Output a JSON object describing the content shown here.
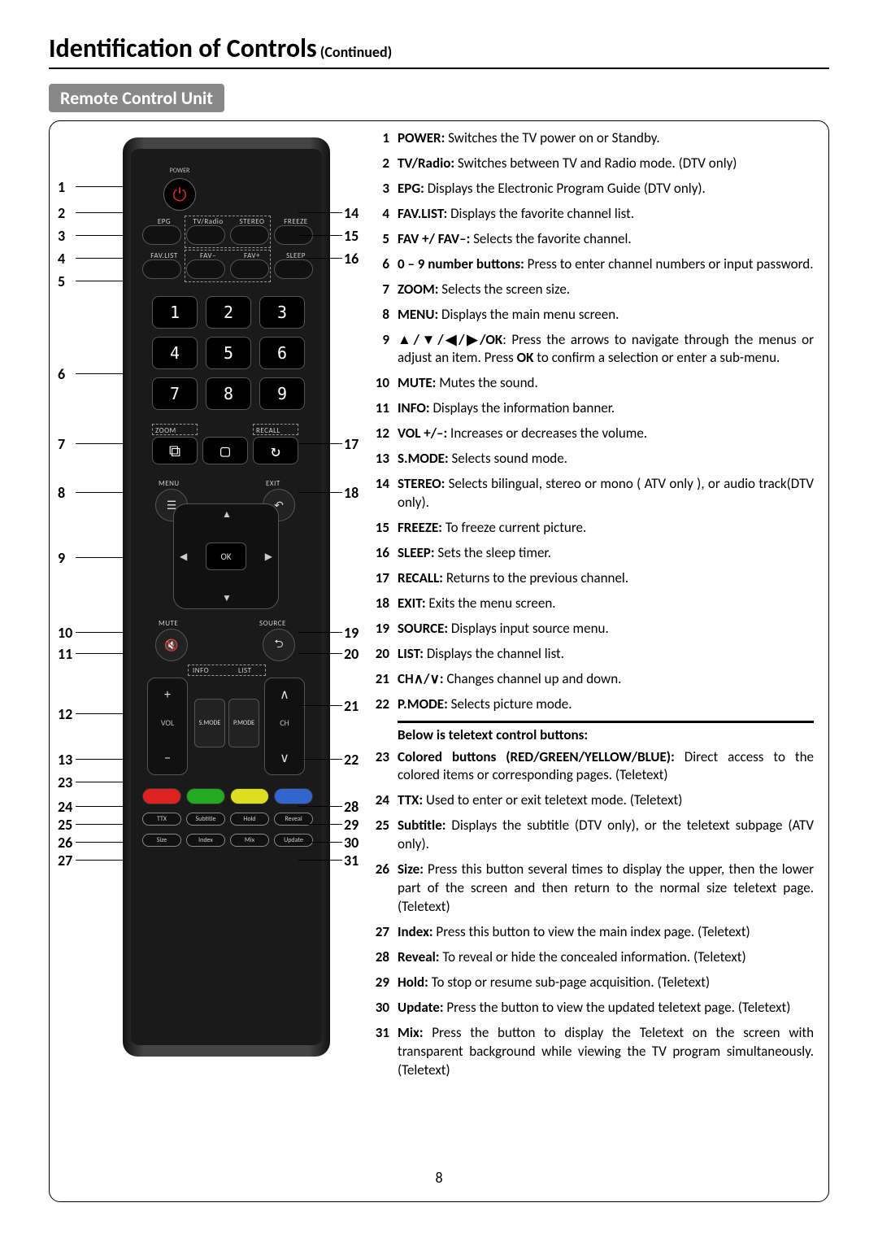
{
  "title_main": "Identification of Controls",
  "title_cont": " (Continued)",
  "section": "Remote Control Unit",
  "page_number": "8",
  "remote": {
    "power_label": "POWER",
    "row2_labels": [
      "EPG",
      "TV/Radio",
      "STEREO",
      "FREEZE"
    ],
    "row3_labels": [
      "FAV.LIST",
      "FAV–",
      "FAV+",
      "SLEEP"
    ],
    "digits": [
      "1",
      "2",
      "3",
      "4",
      "5",
      "6",
      "7",
      "8",
      "9"
    ],
    "zoom_label": "ZOOM",
    "recall_label": "RECALL",
    "menu_label": "MENU",
    "exit_label": "EXIT",
    "ok_label": "OK",
    "mute_label": "MUTE",
    "source_label": "SOURCE",
    "info_label": "INFO",
    "list_label": "LIST",
    "vol_label": "VOL",
    "ch_label": "CH",
    "smode_label": "S.MODE",
    "pmode_label": "P.MODE",
    "color_btns": [
      "#d22",
      "#2a2",
      "#dd2",
      "#36c"
    ],
    "txt_row1": [
      "TTX",
      "Subtitle",
      "Hold",
      "Reveal"
    ],
    "txt_row2": [
      "Size",
      "Index",
      "Mix",
      "Update"
    ]
  },
  "callouts_left": {
    "1": 60,
    "2": 92,
    "3": 120,
    "4": 148,
    "5": 176,
    "6": 290,
    "7": 376,
    "8": 436,
    "9": 516,
    "10": 608,
    "11": 634,
    "12": 708,
    "13": 764,
    "23": 792,
    "24": 822,
    "25": 844,
    "26": 866,
    "27": 888
  },
  "callouts_right": {
    "14": 92,
    "15": 120,
    "16": 148,
    "17": 376,
    "18": 436,
    "19": 608,
    "20": 634,
    "21": 698,
    "22": 764,
    "28": 822,
    "29": 844,
    "30": 866,
    "31": 888
  },
  "descriptions": [
    {
      "n": "1",
      "label": "POWER:",
      "text": " Switches the TV power on or Standby."
    },
    {
      "n": "2",
      "label": "TV/Radio:",
      "text": " Switches between TV and Radio mode. (DTV only)"
    },
    {
      "n": "3",
      "label": "EPG:",
      "text": " Displays the Electronic Program Guide (DTV only)."
    },
    {
      "n": "4",
      "label": "FAV.LIST:",
      "text": " Displays the favorite channel list."
    },
    {
      "n": "5",
      "label": "FAV +/ FAV–:",
      "text": " Selects the favorite channel."
    },
    {
      "n": "6",
      "label": "0 – 9 number buttons:",
      "text": " Press to enter channel numbers or input password."
    },
    {
      "n": "7",
      "label": "ZOOM:",
      "text": " Selects the screen size."
    },
    {
      "n": "8",
      "label": "MENU:",
      "text": " Displays the main menu screen."
    },
    {
      "n": "9",
      "label": "▲/▼/◀/▶/OK",
      "text": ": Press the arrows to navigate through the menus or adjust an item. Press OK to confirm a selection or enter a sub-menu.",
      "bold_ok": true
    },
    {
      "n": "10",
      "label": "MUTE:",
      "text": " Mutes the sound."
    },
    {
      "n": "11",
      "label": "INFO:",
      "text": " Displays the information banner."
    },
    {
      "n": "12",
      "label": "VOL +/–:",
      "text": " Increases or decreases the volume."
    },
    {
      "n": "13",
      "label": "S.MODE:",
      "text": " Selects sound mode."
    },
    {
      "n": "14",
      "label": "STEREO:",
      "text": " Selects bilingual, stereo or mono ( ATV only ), or audio track(DTV only)."
    },
    {
      "n": "15",
      "label": "FREEZE:",
      "text": " To freeze current picture."
    },
    {
      "n": "16",
      "label": "SLEEP:",
      "text": " Sets the sleep timer."
    },
    {
      "n": "17",
      "label": "RECALL:",
      "text": " Returns to the previous channel."
    },
    {
      "n": "18",
      "label": "EXIT:",
      "text": " Exits the menu screen."
    },
    {
      "n": "19",
      "label": "SOURCE:",
      "text": " Displays input source menu."
    },
    {
      "n": "20",
      "label": "LIST:",
      "text": " Displays the channel list."
    },
    {
      "n": "21",
      "label": "CH∧/∨:",
      "text": " Changes channel up and down."
    },
    {
      "n": "22",
      "label": "P.MODE:",
      "text": " Selects picture mode."
    }
  ],
  "teletext_header": "Below is teletext control buttons:",
  "teletext_items": [
    {
      "n": "23",
      "label": "Colored buttons (RED/GREEN/YELLOW/BLUE):",
      "text": " Direct access to the colored items or corresponding pages. (Teletext)"
    },
    {
      "n": "24",
      "label": "TTX:",
      "text": " Used to enter or exit teletext mode. (Teletext)"
    },
    {
      "n": "25",
      "label": "Subtitle:",
      "text": " Displays the subtitle (DTV only), or the teletext subpage (ATV only)."
    },
    {
      "n": "26",
      "label": "Size:",
      "text": " Press this button several times to display the upper, then the lower part of the screen and then return to the normal size teletext page. (Teletext)"
    },
    {
      "n": "27",
      "label": "Index:",
      "text": " Press this button to view the main index page. (Teletext)"
    },
    {
      "n": "28",
      "label": "Reveal:",
      "text": " To reveal or hide the concealed information. (Teletext)"
    },
    {
      "n": "29",
      "label": "Hold:",
      "text": " To stop or resume sub-page acquisition. (Teletext)"
    },
    {
      "n": "30",
      "label": "Update:",
      "text": " Press the button to view the updated teletext page. (Teletext)"
    },
    {
      "n": "31",
      "label": "Mix:",
      "text": " Press the button to display the Teletext on the screen with transparent background while viewing the TV program simultaneously. (Teletext)"
    }
  ]
}
